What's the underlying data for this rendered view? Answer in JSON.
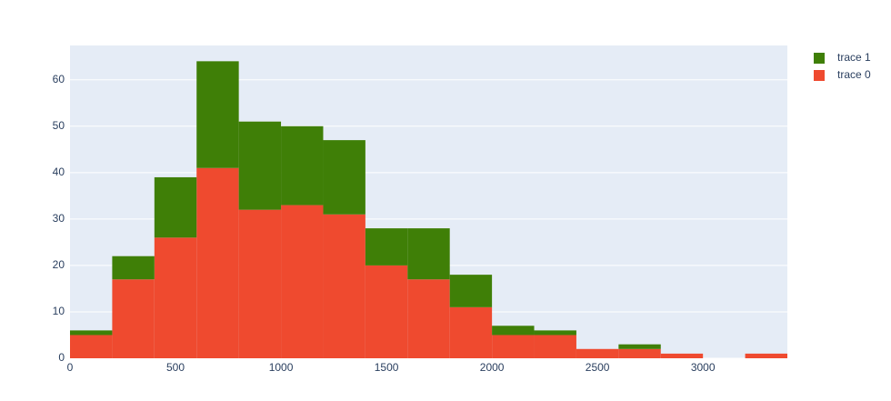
{
  "chart_data": {
    "type": "histogram",
    "bins": [
      0,
      200,
      400,
      600,
      800,
      1000,
      1200,
      1400,
      1600,
      1800,
      2000,
      2200,
      2400,
      2600,
      2800,
      3000,
      3200,
      3400
    ],
    "series": [
      {
        "name": "trace 0",
        "color": "#ef4a2f",
        "values": [
          5,
          17,
          26,
          41,
          32,
          33,
          31,
          20,
          17,
          11,
          5,
          5,
          2,
          2,
          1,
          0,
          1
        ]
      },
      {
        "name": "trace 1",
        "color": "#3f7f07",
        "values": [
          1,
          5,
          13,
          23,
          19,
          17,
          16,
          8,
          11,
          7,
          2,
          1,
          0,
          1,
          0,
          0,
          0
        ]
      }
    ],
    "stacked": true,
    "xlim": [
      0,
      3400
    ],
    "xticks": [
      0,
      500,
      1000,
      1500,
      2000,
      2500,
      3000
    ],
    "ylim": [
      0,
      67.4
    ],
    "yticks": [
      0,
      10,
      20,
      30,
      40,
      50,
      60
    ],
    "grid": true,
    "legend": "top-right"
  }
}
